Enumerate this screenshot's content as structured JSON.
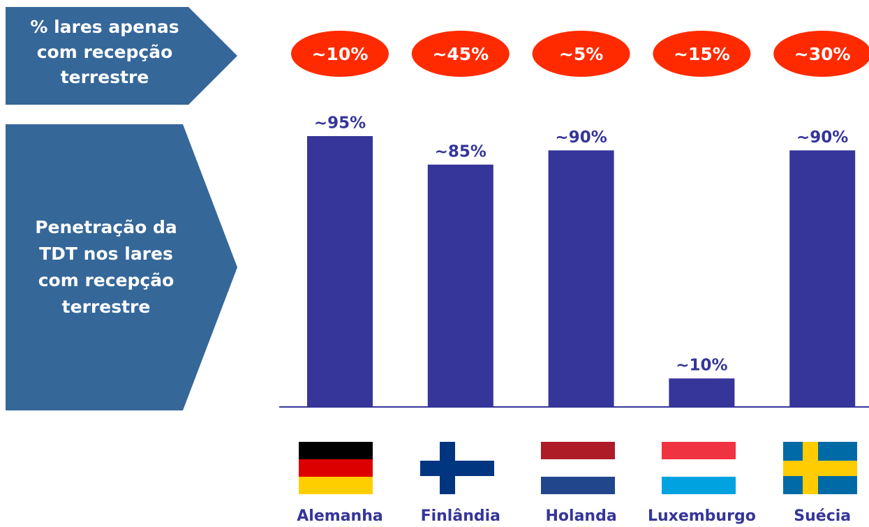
{
  "chart_data": {
    "type": "bar",
    "categories": [
      "Alemanha",
      "Finlândia",
      "Holanda",
      "Luxemburgo",
      "Suécia"
    ],
    "values": [
      95,
      85,
      90,
      10,
      90
    ],
    "value_labels": [
      "~95%",
      "~85%",
      "~90%",
      "~10%",
      "~90%"
    ],
    "color": "#35359a",
    "y_label_lines": [
      "Penetração da",
      "TDT nos lares",
      "com recepção",
      "terrestre"
    ],
    "terrestrial_only": {
      "label_lines": [
        "% lares apenas",
        "com recepção",
        "terrestre"
      ],
      "values": [
        10,
        45,
        5,
        15,
        30
      ],
      "value_labels": [
        "~10%",
        "~45%",
        "~5%",
        "~15%",
        "~30%"
      ],
      "color": "#ff2a00"
    }
  }
}
